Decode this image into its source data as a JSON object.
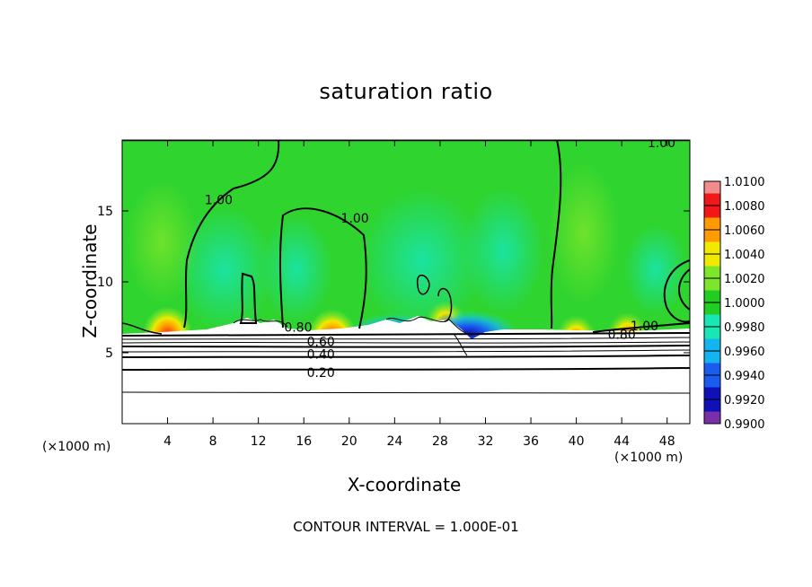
{
  "chart_data": {
    "type": "heatmap",
    "title": "saturation ratio",
    "xlabel": "X-coordinate",
    "ylabel": "Z-coordinate",
    "x_unit_note": "(×1000 m)",
    "footer": "CONTOUR INTERVAL = 1.000E-01",
    "xlim": [
      0,
      50
    ],
    "ylim": [
      0,
      20
    ],
    "x_ticks": [
      4,
      8,
      12,
      16,
      20,
      24,
      28,
      32,
      36,
      40,
      44,
      48
    ],
    "y_ticks": [
      5,
      10,
      15
    ],
    "colorbar": {
      "levels": [
        "0.9900",
        "0.9920",
        "0.9940",
        "0.9960",
        "0.9980",
        "1.0000",
        "1.0020",
        "1.0040",
        "1.0060",
        "1.0080",
        "1.0100"
      ],
      "colors": [
        "#7a2fa8",
        "#1010b8",
        "#1a5cf0",
        "#14b4f0",
        "#18e6b4",
        "#22cc22",
        "#7ee62a",
        "#f0ea00",
        "#ff9a00",
        "#f01818",
        "#f08c8c"
      ]
    },
    "background_color": "#2fd42f",
    "contour_labels": [
      {
        "text": "1.00",
        "x": 47.5,
        "z": 19.8
      },
      {
        "text": "1.00",
        "x": 8.5,
        "z": 15.8
      },
      {
        "text": "1.00",
        "x": 20.5,
        "z": 14.5
      },
      {
        "text": "0.80",
        "x": 15.5,
        "z": 6.8
      },
      {
        "text": "1.00",
        "x": 46,
        "z": 6.9
      },
      {
        "text": "0.80",
        "x": 44,
        "z": 6.3
      },
      {
        "text": "0.60",
        "x": 17.5,
        "z": 5.8
      },
      {
        "text": "0.40",
        "x": 17.5,
        "z": 4.9
      },
      {
        "text": "0.20",
        "x": 17.5,
        "z": 3.6
      }
    ],
    "hotspots": [
      {
        "x": 4,
        "z": 7.2,
        "level": "1.0080"
      },
      {
        "x": 18.5,
        "z": 7.0,
        "level": "1.0070"
      },
      {
        "x": 28.5,
        "z": 7.8,
        "level": "1.0060"
      },
      {
        "x": 40,
        "z": 6.8,
        "level": "1.0040"
      },
      {
        "x": 44.5,
        "z": 7.0,
        "level": "1.0050"
      }
    ],
    "coldspots": [
      {
        "x": 24,
        "z": 7.0,
        "level": "0.9940"
      },
      {
        "x": 30.5,
        "z": 7.2,
        "level": "0.9910"
      }
    ],
    "surface_layer_top_z": 6.5
  }
}
